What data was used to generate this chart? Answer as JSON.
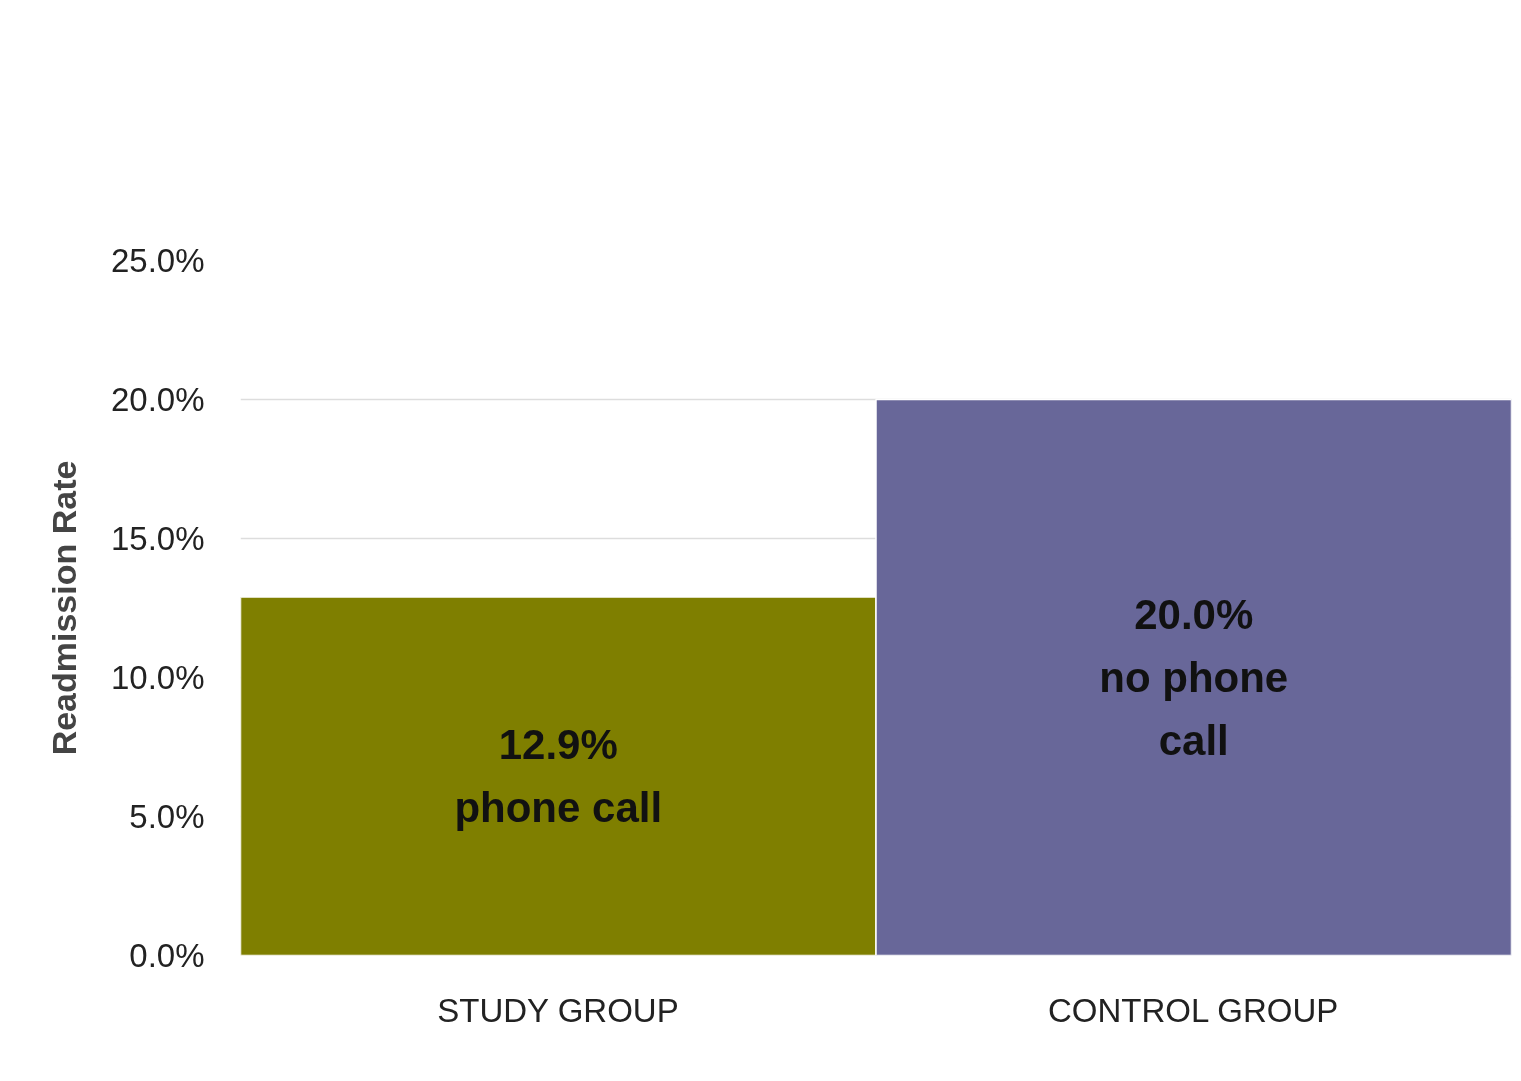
{
  "chart_data": {
    "type": "bar",
    "ylabel": "Readmission Rate",
    "categories": [
      "STUDY GROUP",
      "CONTROL GROUP"
    ],
    "values": [
      12.9,
      20.0
    ],
    "colors": [
      "#7f7f00",
      "#686799"
    ],
    "value_labels": [
      "12.9%\nphone call",
      "20.0%\nno phone\ncall"
    ],
    "ylim": [
      0,
      25
    ],
    "yticks": [
      {
        "value": 0,
        "label": "0.0%"
      },
      {
        "value": 5,
        "label": "5.0%"
      },
      {
        "value": 10,
        "label": "10.0%"
      },
      {
        "value": 15,
        "label": "15.0%"
      },
      {
        "value": 20,
        "label": "20.0%"
      },
      {
        "value": 25,
        "label": "25.0%"
      }
    ],
    "grid": "y"
  }
}
